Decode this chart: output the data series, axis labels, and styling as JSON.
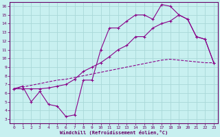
{
  "background_color": "#c8f0f0",
  "grid_color": "#a8d8d8",
  "line_color": "#880088",
  "xlabel": "Windchill (Refroidissement éolien,°C)",
  "xlim": [
    -0.5,
    23.5
  ],
  "ylim": [
    2.5,
    16.5
  ],
  "xticks": [
    0,
    1,
    2,
    3,
    4,
    5,
    6,
    7,
    8,
    9,
    10,
    11,
    12,
    13,
    14,
    15,
    16,
    17,
    18,
    19,
    20,
    21,
    22,
    23
  ],
  "yticks": [
    3,
    4,
    5,
    6,
    7,
    8,
    9,
    10,
    11,
    12,
    13,
    14,
    15,
    16
  ],
  "line_dashed_x": [
    0,
    1,
    2,
    3,
    4,
    5,
    6,
    7,
    8,
    9,
    10,
    11,
    12,
    13,
    14,
    15,
    16,
    17,
    18,
    19,
    20,
    21,
    22,
    23
  ],
  "line_dashed_y": [
    6.5,
    6.7,
    6.9,
    7.1,
    7.3,
    7.5,
    7.6,
    7.8,
    8.0,
    8.2,
    8.4,
    8.6,
    8.8,
    9.0,
    9.2,
    9.4,
    9.6,
    9.8,
    9.9,
    9.8,
    9.7,
    9.6,
    9.5,
    9.5
  ],
  "line_wavy_x": [
    0,
    1,
    2,
    3,
    4,
    5,
    6,
    7,
    8,
    9,
    10,
    11,
    12,
    13,
    14,
    15,
    16,
    17,
    18,
    19,
    20,
    21,
    22,
    23
  ],
  "line_wavy_y": [
    6.5,
    6.8,
    5.0,
    6.2,
    4.7,
    4.5,
    3.3,
    3.5,
    7.5,
    7.5,
    11.0,
    13.5,
    13.5,
    14.3,
    15.0,
    15.0,
    14.5,
    16.2,
    16.0,
    15.0,
    14.5,
    12.5,
    12.2,
    9.5
  ],
  "line_upper_x": [
    0,
    1,
    2,
    3,
    4,
    5,
    6,
    7,
    8,
    9,
    10,
    11,
    12,
    13,
    14,
    15,
    16,
    17,
    18,
    19,
    20,
    21,
    22,
    23
  ],
  "line_upper_y": [
    6.5,
    6.5,
    6.5,
    6.5,
    6.6,
    6.8,
    7.0,
    7.6,
    8.5,
    9.0,
    9.5,
    10.2,
    11.0,
    11.5,
    12.5,
    12.5,
    13.5,
    14.0,
    14.3,
    15.0,
    14.5,
    12.5,
    12.2,
    9.5
  ]
}
